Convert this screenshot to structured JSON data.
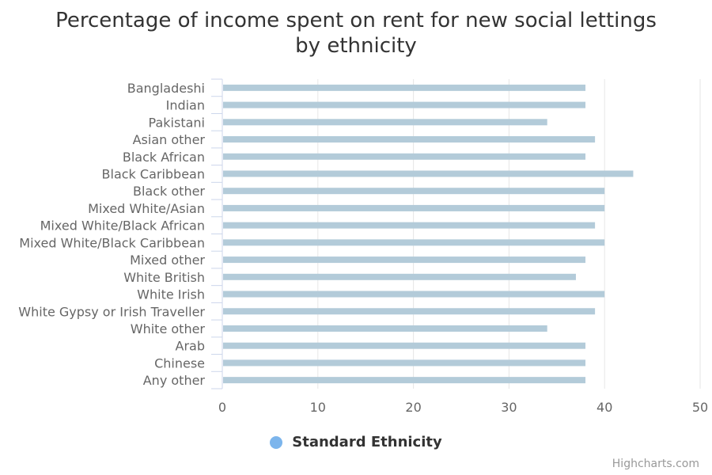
{
  "chart_data": {
    "type": "bar",
    "orientation": "horizontal",
    "title_line1": "Percentage of income spent on rent for new social lettings",
    "title_line2": "by ethnicity",
    "categories": [
      "Bangladeshi",
      "Indian",
      "Pakistani",
      "Asian other",
      "Black African",
      "Black Caribbean",
      "Black other",
      "Mixed White/Asian",
      "Mixed White/Black African",
      "Mixed White/Black Caribbean",
      "Mixed other",
      "White British",
      "White Irish",
      "White Gypsy or Irish Traveller",
      "White other",
      "Arab",
      "Chinese",
      "Any other"
    ],
    "series": [
      {
        "name": "Standard Ethnicity",
        "values": [
          38,
          38,
          34,
          39,
          38,
          43,
          40,
          40,
          39,
          40,
          38,
          37,
          40,
          39,
          34,
          38,
          38,
          38
        ]
      }
    ],
    "xlim": [
      0,
      50
    ],
    "ticks": [
      0,
      10,
      20,
      30,
      40,
      50
    ],
    "grid": true,
    "legend_position": "bottom"
  },
  "colors": {
    "bar": "#b3cbd9",
    "legend_symbol": "#7cb5ec",
    "grid": "#e6e6e6",
    "axis_line": "#ccd6eb",
    "label_text": "#666666"
  },
  "credits": "Highcharts.com"
}
